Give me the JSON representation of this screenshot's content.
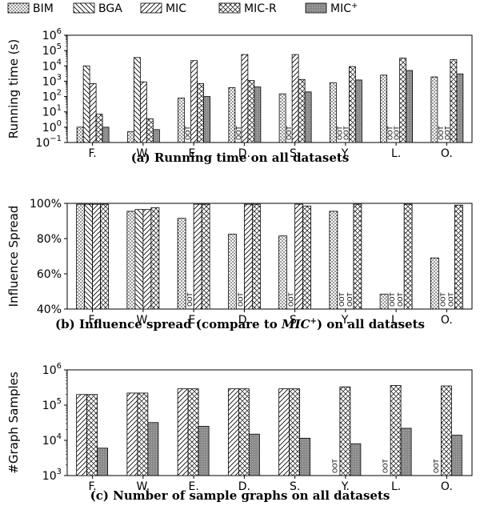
{
  "legend": [
    {
      "key": "BIM",
      "label": "BIM",
      "pattern": "dots"
    },
    {
      "key": "BGA",
      "label": "BGA",
      "pattern": "back"
    },
    {
      "key": "MIC",
      "label": "MIC",
      "pattern": "fwd"
    },
    {
      "key": "MICR",
      "label": "MIC-R",
      "pattern": "cross"
    },
    {
      "key": "MICP",
      "label": "MIC",
      "label_sup": "+",
      "pattern": "gray"
    }
  ],
  "oot_label": "OOT",
  "chart_data": [
    {
      "id": "a",
      "type": "bar",
      "scale": "log",
      "ylabel": "Running time (s)",
      "ylim": [
        0.1,
        1000000
      ],
      "yticks": [
        {
          "v": 0.1,
          "base": "10",
          "exp": "−1"
        },
        {
          "v": 1,
          "base": "10",
          "exp": "0"
        },
        {
          "v": 10,
          "base": "10",
          "exp": "1"
        },
        {
          "v": 100,
          "base": "10",
          "exp": "2"
        },
        {
          "v": 1000,
          "base": "10",
          "exp": "3"
        },
        {
          "v": 10000,
          "base": "10",
          "exp": "4"
        },
        {
          "v": 100000,
          "base": "10",
          "exp": "5"
        },
        {
          "v": 1000000,
          "base": "10",
          "exp": "6"
        }
      ],
      "categories": [
        "F.",
        "W.",
        "E.",
        "D.",
        "S.",
        "Y.",
        "L.",
        "O."
      ],
      "caption": "(a) Running time on all datasets",
      "series": [
        {
          "name": "BIM",
          "values": [
            1.0,
            0.5,
            80,
            380,
            150,
            800,
            2500,
            1900
          ]
        },
        {
          "name": "BGA",
          "values": [
            10000,
            35000,
            "OOT",
            "OOT",
            "OOT",
            "OOT",
            "OOT",
            "OOT"
          ]
        },
        {
          "name": "MIC",
          "values": [
            700,
            900,
            22000,
            55000,
            55000,
            "OOT",
            "OOT",
            "OOT"
          ]
        },
        {
          "name": "MIC-R",
          "values": [
            7,
            3.5,
            700,
            1100,
            1300,
            9000,
            32000,
            26000
          ]
        },
        {
          "name": "MIC+",
          "values": [
            1.0,
            0.7,
            100,
            420,
            200,
            1200,
            5000,
            3000
          ]
        }
      ]
    },
    {
      "id": "b",
      "type": "bar",
      "scale": "linear",
      "ylabel": "Influence Spread",
      "ylim": [
        40,
        100
      ],
      "yticks": [
        {
          "v": 40,
          "label": "40%"
        },
        {
          "v": 60,
          "label": "60%"
        },
        {
          "v": 80,
          "label": "80%"
        },
        {
          "v": 100,
          "label": "100%"
        }
      ],
      "categories": [
        "F.",
        "W.",
        "E.",
        "D.",
        "S.",
        "Y.",
        "L.",
        "O."
      ],
      "caption_parts": {
        "pre": "(b) Influence spread (compare to ",
        "it": "MIC",
        "sup": "+",
        "post": ") on all datasets"
      },
      "series": [
        {
          "name": "BIM",
          "values": [
            99.5,
            95.5,
            91.5,
            82.5,
            81.5,
            95.5,
            48.5,
            69
          ]
        },
        {
          "name": "BGA",
          "values": [
            99.5,
            96.5,
            "OOT",
            "OOT",
            "OOT",
            "OOT",
            "OOT",
            "OOT"
          ]
        },
        {
          "name": "MIC",
          "values": [
            99.5,
            96.5,
            99.5,
            99.5,
            99.5,
            "OOT",
            "OOT",
            "OOT"
          ]
        },
        {
          "name": "MIC-R",
          "values": [
            99.5,
            97.5,
            99.5,
            99.5,
            98.5,
            99.5,
            99.5,
            99
          ]
        }
      ]
    },
    {
      "id": "c",
      "type": "bar",
      "scale": "log",
      "ylabel": "#Graph Samples",
      "ylim": [
        1000,
        1000000
      ],
      "yticks": [
        {
          "v": 1000,
          "base": "10",
          "exp": "3"
        },
        {
          "v": 10000,
          "base": "10",
          "exp": "4"
        },
        {
          "v": 100000,
          "base": "10",
          "exp": "5"
        },
        {
          "v": 1000000,
          "base": "10",
          "exp": "6"
        }
      ],
      "categories": [
        "F.",
        "W.",
        "E.",
        "D.",
        "S.",
        "Y.",
        "L.",
        "O."
      ],
      "caption": "(c) Number of sample graphs on all datasets",
      "series": [
        {
          "name": "MIC",
          "values": [
            200000,
            220000,
            290000,
            290000,
            290000,
            "OOT",
            "OOT",
            "OOT"
          ]
        },
        {
          "name": "MIC-R",
          "values": [
            200000,
            220000,
            290000,
            290000,
            290000,
            330000,
            360000,
            350000
          ]
        },
        {
          "name": "MIC+",
          "values": [
            6000,
            32000,
            25000,
            15000,
            11500,
            8000,
            22000,
            14000
          ]
        }
      ]
    }
  ]
}
